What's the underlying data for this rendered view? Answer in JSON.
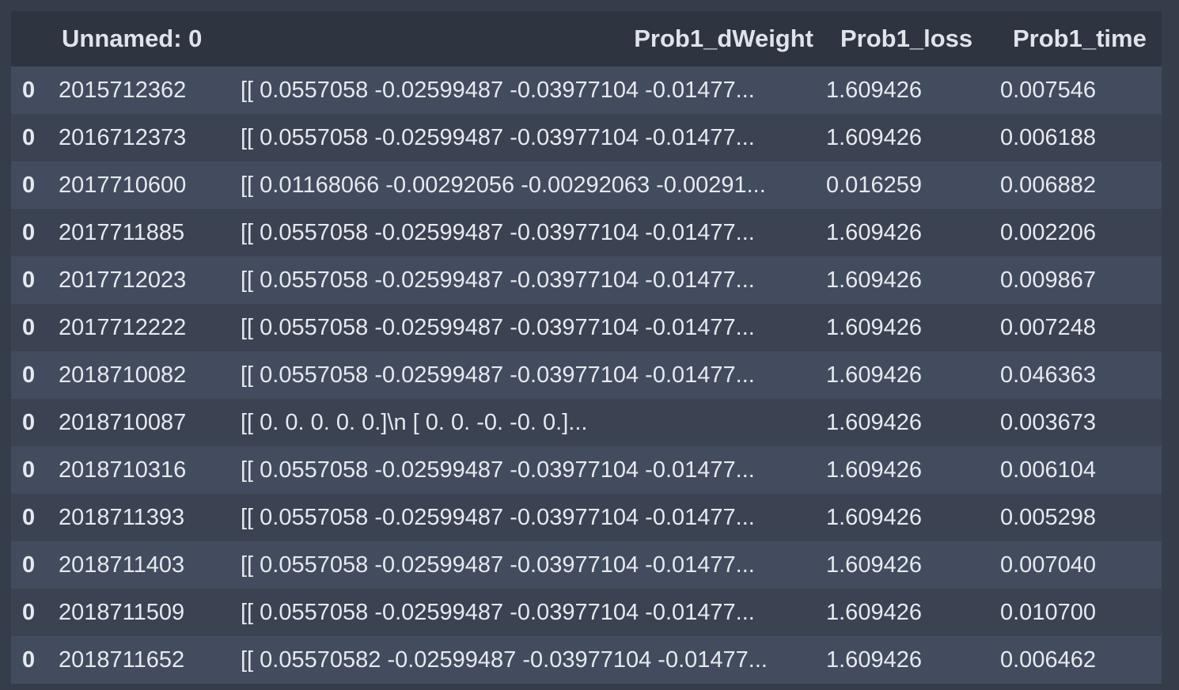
{
  "table": {
    "columns": [
      "",
      "Unnamed: 0",
      "Prob1_dWeight",
      "Prob1_loss",
      "Prob1_time"
    ],
    "rows": [
      {
        "index": "0",
        "unnamed": "2015712362",
        "dweight": "[[ 0.0557058 -0.02599487 -0.03977104 -0.01477...",
        "loss": "1.609426",
        "time": "0.007546"
      },
      {
        "index": "0",
        "unnamed": "2016712373",
        "dweight": "[[ 0.0557058 -0.02599487 -0.03977104 -0.01477...",
        "loss": "1.609426",
        "time": "0.006188"
      },
      {
        "index": "0",
        "unnamed": "2017710600",
        "dweight": "[[ 0.01168066 -0.00292056 -0.00292063 -0.00291...",
        "loss": "0.016259",
        "time": "0.006882"
      },
      {
        "index": "0",
        "unnamed": "2017711885",
        "dweight": "[[ 0.0557058 -0.02599487 -0.03977104 -0.01477...",
        "loss": "1.609426",
        "time": "0.002206"
      },
      {
        "index": "0",
        "unnamed": "2017712023",
        "dweight": "[[ 0.0557058 -0.02599487 -0.03977104 -0.01477...",
        "loss": "1.609426",
        "time": "0.009867"
      },
      {
        "index": "0",
        "unnamed": "2017712222",
        "dweight": "[[ 0.0557058 -0.02599487 -0.03977104 -0.01477...",
        "loss": "1.609426",
        "time": "0.007248"
      },
      {
        "index": "0",
        "unnamed": "2018710082",
        "dweight": "[[ 0.0557058 -0.02599487 -0.03977104 -0.01477...",
        "loss": "1.609426",
        "time": "0.046363"
      },
      {
        "index": "0",
        "unnamed": "2018710087",
        "dweight": "[[ 0. 0. 0. 0. 0.]\\n [ 0. 0. -0. -0. 0.]...",
        "loss": "1.609426",
        "time": "0.003673"
      },
      {
        "index": "0",
        "unnamed": "2018710316",
        "dweight": "[[ 0.0557058 -0.02599487 -0.03977104 -0.01477...",
        "loss": "1.609426",
        "time": "0.006104"
      },
      {
        "index": "0",
        "unnamed": "2018711393",
        "dweight": "[[ 0.0557058 -0.02599487 -0.03977104 -0.01477...",
        "loss": "1.609426",
        "time": "0.005298"
      },
      {
        "index": "0",
        "unnamed": "2018711403",
        "dweight": "[[ 0.0557058 -0.02599487 -0.03977104 -0.01477...",
        "loss": "1.609426",
        "time": "0.007040"
      },
      {
        "index": "0",
        "unnamed": "2018711509",
        "dweight": "[[ 0.0557058 -0.02599487 -0.03977104 -0.01477...",
        "loss": "1.609426",
        "time": "0.010700"
      },
      {
        "index": "0",
        "unnamed": "2018711652",
        "dweight": "[[ 0.05570582 -0.02599487 -0.03977104 -0.01477...",
        "loss": "1.609426",
        "time": "0.006462"
      }
    ]
  },
  "colors": {
    "page_background": "#353c4a",
    "header_background": "#2e3440",
    "row_odd": "#434c5e",
    "row_even": "#3b4252",
    "text": "#e6e9ef"
  }
}
